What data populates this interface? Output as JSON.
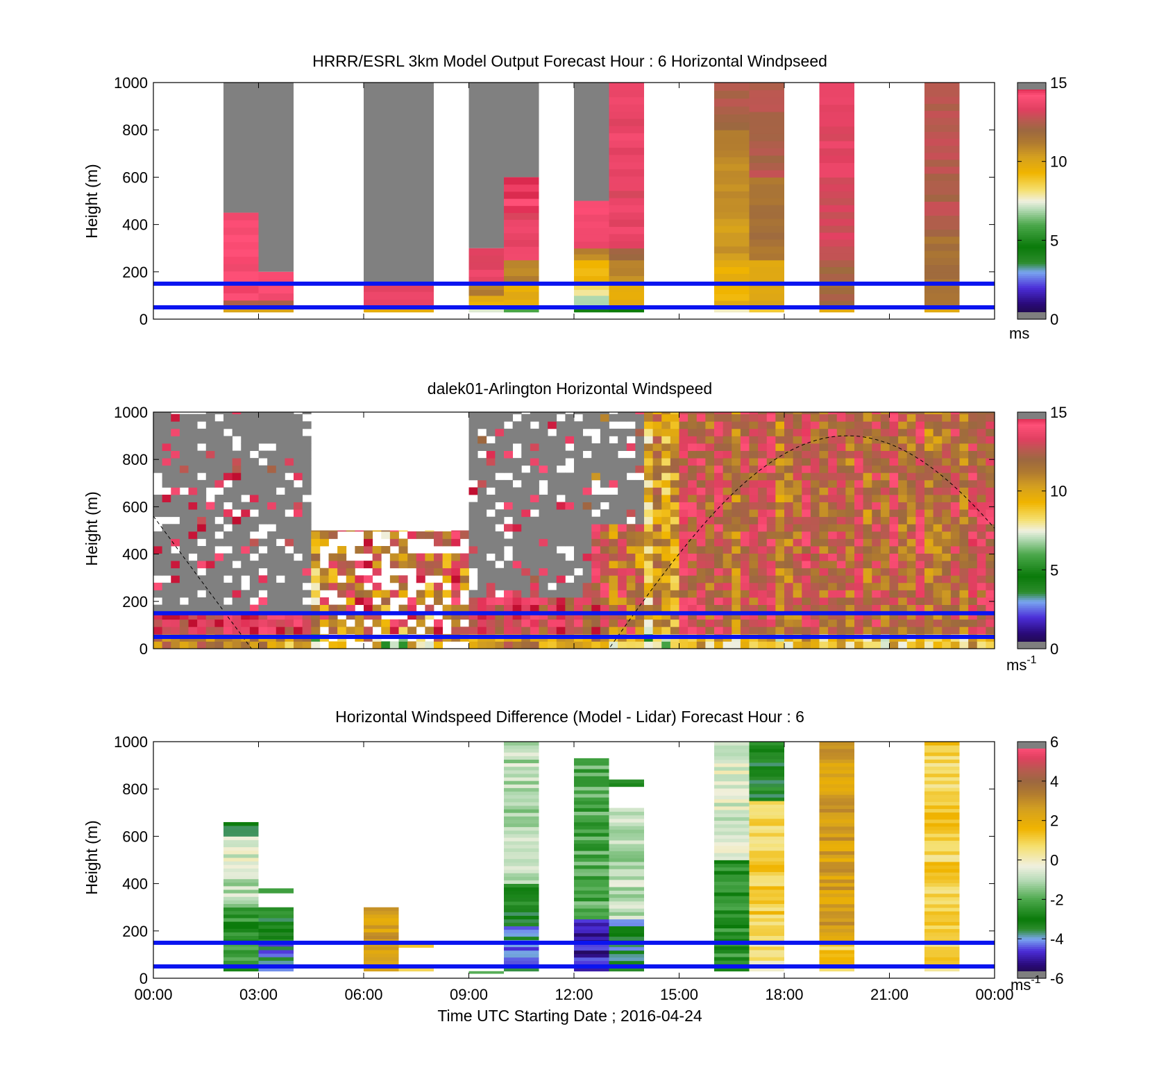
{
  "figure": {
    "xlabel": "Time UTC  Starting Date ; 2016-04-24",
    "x_tick_labels": [
      "00:00",
      "03:00",
      "06:00",
      "09:00",
      "12:00",
      "15:00",
      "18:00",
      "21:00",
      "00:00"
    ]
  },
  "chart_data": [
    {
      "type": "heatmap",
      "title": "HRRR/ESRL 3km Model Output   Forecast Hour : 6 Horizontal Windpseed",
      "ylabel": "Height (m)",
      "xlabel": "",
      "xlim_hours": [
        0,
        24
      ],
      "ylim": [
        0,
        1000
      ],
      "y_ticks": [
        0,
        200,
        400,
        600,
        800,
        1000
      ],
      "colorbar": {
        "ticks": [
          0,
          5,
          10,
          15
        ],
        "unit": "ms",
        "unit_sup": "",
        "range": [
          0,
          15
        ]
      },
      "reference_lines_m": [
        50,
        150
      ],
      "columns": [
        {
          "t0": 2,
          "t1": 3,
          "cells": [
            [
              30,
              50,
              10
            ],
            [
              50,
              80,
              12.5
            ],
            [
              80,
              450,
              14
            ]
          ],
          "missing_above": 450
        },
        {
          "t0": 3,
          "t1": 4,
          "cells": [
            [
              30,
              50,
              10
            ],
            [
              50,
              80,
              12.5
            ],
            [
              80,
              200,
              14
            ]
          ],
          "missing_above": 200
        },
        {
          "t0": 6,
          "t1": 8,
          "cells": [
            [
              30,
              50,
              10
            ],
            [
              50,
              150,
              13.5
            ]
          ],
          "missing_above": 150
        },
        {
          "t0": 9,
          "t1": 10,
          "cells": [
            [
              30,
              50,
              7.5
            ],
            [
              50,
              100,
              9.5
            ],
            [
              100,
              150,
              11
            ],
            [
              150,
              300,
              13.5
            ]
          ],
          "missing_above": 300
        },
        {
          "t0": 10,
          "t1": 11,
          "cells": [
            [
              30,
              50,
              6
            ],
            [
              50,
              150,
              9.5
            ],
            [
              150,
              250,
              11
            ],
            [
              250,
              450,
              13.5
            ],
            [
              450,
              600,
              14.5
            ]
          ],
          "missing_above": 600
        },
        {
          "t0": 12,
          "t1": 13,
          "cells": [
            [
              30,
              50,
              4.5
            ],
            [
              50,
              100,
              7
            ],
            [
              100,
              150,
              8
            ],
            [
              150,
              250,
              9.5
            ],
            [
              250,
              300,
              11
            ],
            [
              300,
              500,
              14
            ]
          ],
          "missing_above": 500
        },
        {
          "t0": 13,
          "t1": 14,
          "cells": [
            [
              30,
              50,
              4.5
            ],
            [
              50,
              150,
              9.5
            ],
            [
              150,
              250,
              11
            ],
            [
              250,
              300,
              12
            ],
            [
              300,
              1000,
              13.5
            ]
          ],
          "missing_above": 1000
        },
        {
          "t0": 16,
          "t1": 17,
          "cells": [
            [
              30,
              50,
              8
            ],
            [
              50,
              250,
              9.5
            ],
            [
              250,
              600,
              10.5
            ],
            [
              600,
              800,
              11
            ],
            [
              800,
              900,
              12
            ],
            [
              900,
              1000,
              12.5
            ]
          ],
          "missing_above": 1000
        },
        {
          "t0": 17,
          "t1": 18,
          "cells": [
            [
              30,
              50,
              9
            ],
            [
              50,
              250,
              10
            ],
            [
              250,
              600,
              11.5
            ],
            [
              600,
              1000,
              12.5
            ]
          ],
          "missing_above": 1000
        },
        {
          "t0": 19,
          "t1": 20,
          "cells": [
            [
              30,
              50,
              10
            ],
            [
              50,
              250,
              12
            ],
            [
              250,
              600,
              13
            ],
            [
              600,
              1000,
              13.5
            ]
          ],
          "missing_above": 1000
        },
        {
          "t0": 22,
          "t1": 23,
          "cells": [
            [
              30,
              50,
              10
            ],
            [
              50,
              350,
              11.5
            ],
            [
              350,
              1000,
              12.5
            ]
          ],
          "missing_above": 1000
        }
      ]
    },
    {
      "type": "heatmap",
      "title": "dalek01-Arlington  Horizontal Windspeed",
      "ylabel": "Height (m)",
      "xlabel": "",
      "xlim_hours": [
        0,
        24
      ],
      "ylim": [
        0,
        1000
      ],
      "y_ticks": [
        0,
        200,
        400,
        600,
        800,
        1000
      ],
      "colorbar": {
        "ticks": [
          0,
          5,
          10,
          15
        ],
        "unit": "ms",
        "unit_sup": "-1",
        "range": [
          0,
          15
        ]
      },
      "reference_lines_m": [
        50,
        150
      ],
      "sun_elevation_curve": {
        "peak_hour": 19.8,
        "peak_m": 900,
        "zero_hours": [
          2.8,
          13
        ]
      },
      "regions": [
        {
          "t0": 0,
          "t1": 2.5,
          "top": 1000,
          "gray_above": 150,
          "speed": 14,
          "noise": 1.5
        },
        {
          "t0": 2.5,
          "t1": 4.5,
          "top": 1000,
          "gray_above": 150,
          "speed": 13.5,
          "noise": 1.5
        },
        {
          "t0": 4.5,
          "t1": 9,
          "top": 500,
          "gray_above": 700,
          "speed": 11.5,
          "noise": 2.5
        },
        {
          "t0": 9,
          "t1": 12.5,
          "top": 1000,
          "gray_above": 200,
          "speed": 13.5,
          "noise": 1.5
        },
        {
          "t0": 12.5,
          "t1": 14,
          "top": 1000,
          "gray_above": 500,
          "speed": 12.5,
          "noise": 2
        },
        {
          "t0": 14,
          "t1": 15,
          "top": 1000,
          "gray_above": 1000,
          "speed": 9.5,
          "noise": 2
        },
        {
          "t0": 15,
          "t1": 24,
          "top": 1000,
          "gray_above": 1000,
          "speed": 12,
          "noise": 1.5
        }
      ]
    },
    {
      "type": "heatmap",
      "title": "Horizontal Windspeed Difference (Model - Lidar) Forecast Hour : 6",
      "ylabel": "Height (m)",
      "xlabel": "Time UTC  Starting Date ; 2016-04-24",
      "xlim_hours": [
        0,
        24
      ],
      "ylim": [
        0,
        1000
      ],
      "y_ticks": [
        0,
        200,
        400,
        600,
        800,
        1000
      ],
      "colorbar": {
        "ticks": [
          -6,
          -4,
          -2,
          0,
          2,
          4,
          6
        ],
        "unit": "ms",
        "unit_sup": "-1",
        "range": [
          -6,
          6
        ]
      },
      "reference_lines_m": [
        50,
        150
      ],
      "columns": [
        {
          "t0": 2,
          "t1": 3,
          "cells": [
            [
              30,
              300,
              -2.5
            ],
            [
              300,
              450,
              -1
            ],
            [
              450,
              600,
              -0.5
            ],
            [
              600,
              660,
              -3
            ]
          ]
        },
        {
          "t0": 3,
          "t1": 4,
          "cells": [
            [
              30,
              150,
              -4
            ],
            [
              150,
              300,
              -3
            ],
            [
              360,
              380,
              -2.5
            ]
          ]
        },
        {
          "t0": 6,
          "t1": 7,
          "cells": [
            [
              30,
              300,
              2.5
            ]
          ]
        },
        {
          "t0": 7,
          "t1": 8,
          "cells": [
            [
              30,
              50,
              1.5
            ],
            [
              130,
              150,
              1.5
            ]
          ]
        },
        {
          "t0": 9,
          "t1": 10,
          "cells": [
            [
              20,
              30,
              -2.5
            ]
          ]
        },
        {
          "t0": 10,
          "t1": 11,
          "cells": [
            [
              30,
              250,
              -4
            ],
            [
              250,
              400,
              -3
            ],
            [
              400,
              1000,
              -1
            ]
          ]
        },
        {
          "t0": 12,
          "t1": 13,
          "cells": [
            [
              30,
              250,
              -5
            ],
            [
              250,
              600,
              -2
            ],
            [
              600,
              930,
              -2
            ]
          ]
        },
        {
          "t0": 13,
          "t1": 14,
          "cells": [
            [
              30,
              250,
              -3.5
            ],
            [
              250,
              720,
              -1
            ],
            [
              810,
              840,
              -3
            ]
          ]
        },
        {
          "t0": 16,
          "t1": 17,
          "cells": [
            [
              30,
              500,
              -2.5
            ],
            [
              500,
              1000,
              -0.5
            ]
          ]
        },
        {
          "t0": 17,
          "t1": 18,
          "cells": [
            [
              30,
              150,
              0.5
            ],
            [
              150,
              750,
              1
            ],
            [
              750,
              1000,
              -3
            ]
          ]
        },
        {
          "t0": 19,
          "t1": 20,
          "cells": [
            [
              30,
              150,
              1
            ],
            [
              150,
              1000,
              2.5
            ]
          ]
        },
        {
          "t0": 22,
          "t1": 23,
          "cells": [
            [
              30,
              1000,
              1
            ]
          ]
        }
      ]
    }
  ]
}
